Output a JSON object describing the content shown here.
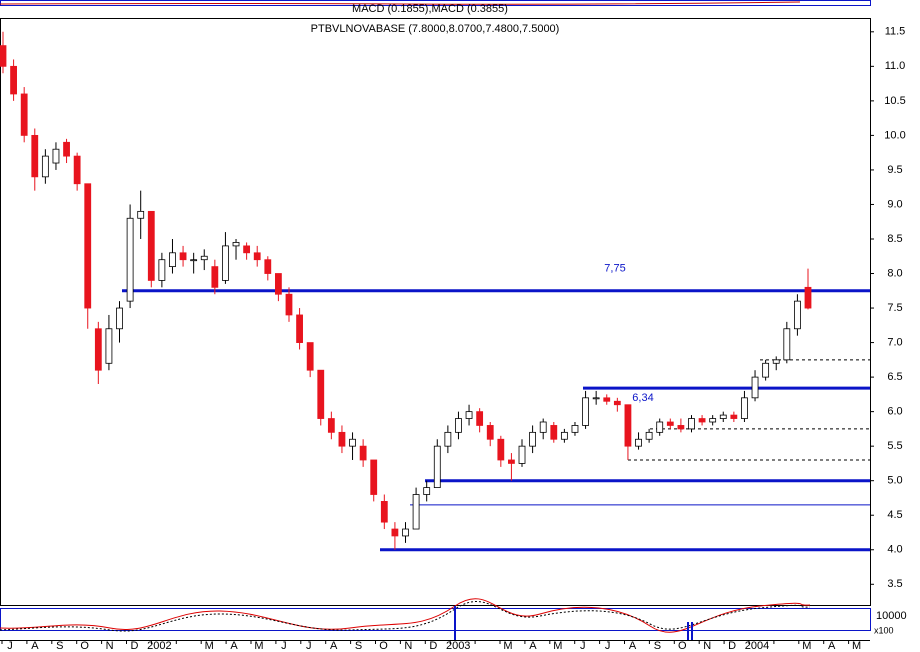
{
  "chart_data": {
    "type": "candlestick",
    "title": "PTBVLNOVABASE (7.8000,8.0700,7.4800,7.5000)",
    "indicator_title": "MACD (0.1855),MACD (0.3855)",
    "lower_label": "10000",
    "lower_unit": "x100",
    "categories": [
      "J",
      "A",
      "S",
      "O",
      "N",
      "D",
      "2002",
      null,
      "M",
      "A",
      "M",
      "J",
      "J",
      "A",
      "S",
      "O",
      "N",
      "D",
      "2003",
      null,
      "M",
      "A",
      "M",
      "J",
      "J",
      "A",
      "S",
      "O",
      "N",
      "D",
      "2004",
      null,
      "M",
      "A",
      "M"
    ],
    "ylim": [
      3.2,
      11.7
    ],
    "yticks": [
      3.5,
      {
        "value": 4,
        "label": "4.0"
      },
      4.5,
      {
        "value": 5,
        "label": "5.0"
      },
      5.5,
      {
        "value": 6,
        "label": "6.0"
      },
      6.5,
      {
        "value": 7,
        "label": "7.0"
      },
      7.5,
      {
        "value": 8,
        "label": "8.0"
      },
      8.5,
      {
        "value": 9,
        "label": "9.0"
      },
      9.5,
      {
        "value": 10,
        "label": "10.0"
      },
      10.5,
      {
        "value": 11,
        "label": "11.0"
      },
      11.5
    ],
    "up_color": "#ffffff",
    "down_color": "#e8141e",
    "level_color": "#0a14c8",
    "ohlc": [
      [
        11.3,
        11.5,
        10.9,
        11.0
      ],
      [
        11.0,
        11.1,
        10.5,
        10.6
      ],
      [
        10.6,
        10.7,
        9.9,
        10.0
      ],
      [
        10.0,
        10.1,
        9.2,
        9.4
      ],
      [
        9.4,
        9.8,
        9.3,
        9.7
      ],
      [
        9.6,
        9.9,
        9.5,
        9.8
      ],
      [
        9.9,
        9.95,
        9.6,
        9.7
      ],
      [
        9.7,
        9.75,
        9.2,
        9.3
      ],
      [
        9.3,
        9.3,
        7.2,
        7.5
      ],
      [
        7.2,
        7.3,
        6.4,
        6.6
      ],
      [
        6.7,
        7.4,
        6.6,
        7.2
      ],
      [
        7.2,
        7.6,
        7.0,
        7.5
      ],
      [
        7.6,
        9.0,
        7.5,
        8.8
      ],
      [
        8.8,
        9.2,
        8.5,
        8.9
      ],
      [
        8.9,
        8.9,
        7.8,
        7.9
      ],
      [
        7.9,
        8.3,
        7.8,
        8.2
      ],
      [
        8.1,
        8.5,
        8.0,
        8.3
      ],
      [
        8.3,
        8.4,
        8.1,
        8.2
      ],
      [
        8.2,
        8.3,
        8.0,
        8.2
      ],
      [
        8.2,
        8.35,
        8.05,
        8.25
      ],
      [
        8.1,
        8.2,
        7.7,
        7.8
      ],
      [
        7.9,
        8.6,
        7.85,
        8.4
      ],
      [
        8.4,
        8.5,
        8.2,
        8.45
      ],
      [
        8.4,
        8.45,
        8.2,
        8.3
      ],
      [
        8.3,
        8.4,
        8.1,
        8.2
      ],
      [
        8.2,
        8.25,
        7.9,
        8.0
      ],
      [
        8.0,
        8.0,
        7.6,
        7.7
      ],
      [
        7.7,
        7.8,
        7.3,
        7.4
      ],
      [
        7.4,
        7.5,
        6.9,
        7.0
      ],
      [
        7.0,
        7.0,
        6.5,
        6.6
      ],
      [
        6.6,
        6.6,
        5.8,
        5.9
      ],
      [
        5.9,
        6.0,
        5.6,
        5.7
      ],
      [
        5.7,
        5.8,
        5.4,
        5.5
      ],
      [
        5.5,
        5.7,
        5.3,
        5.6
      ],
      [
        5.5,
        5.6,
        5.2,
        5.3
      ],
      [
        5.3,
        5.3,
        4.7,
        4.8
      ],
      [
        4.7,
        4.8,
        4.3,
        4.4
      ],
      [
        4.3,
        4.4,
        4.0,
        4.2
      ],
      [
        4.2,
        4.4,
        4.1,
        4.3
      ],
      [
        4.3,
        4.9,
        4.3,
        4.8
      ],
      [
        4.8,
        5.0,
        4.7,
        4.9
      ],
      [
        4.9,
        5.6,
        4.9,
        5.5
      ],
      [
        5.5,
        5.8,
        5.4,
        5.7
      ],
      [
        5.7,
        6.0,
        5.6,
        5.9
      ],
      [
        5.9,
        6.1,
        5.8,
        6.0
      ],
      [
        6.0,
        6.05,
        5.7,
        5.8
      ],
      [
        5.8,
        5.85,
        5.5,
        5.6
      ],
      [
        5.6,
        5.65,
        5.2,
        5.3
      ],
      [
        5.3,
        5.4,
        5.0,
        5.25
      ],
      [
        5.25,
        5.6,
        5.2,
        5.5
      ],
      [
        5.5,
        5.8,
        5.4,
        5.7
      ],
      [
        5.7,
        5.9,
        5.6,
        5.85
      ],
      [
        5.8,
        5.85,
        5.55,
        5.6
      ],
      [
        5.6,
        5.75,
        5.55,
        5.7
      ],
      [
        5.7,
        5.85,
        5.65,
        5.8
      ],
      [
        5.8,
        6.3,
        5.75,
        6.2
      ],
      [
        6.2,
        6.3,
        6.1,
        6.2
      ],
      [
        6.2,
        6.25,
        6.1,
        6.15
      ],
      [
        6.15,
        6.2,
        6.0,
        6.1
      ],
      [
        6.1,
        6.1,
        5.3,
        5.5
      ],
      [
        5.5,
        5.7,
        5.45,
        5.6
      ],
      [
        5.6,
        5.75,
        5.55,
        5.7
      ],
      [
        5.7,
        5.9,
        5.65,
        5.85
      ],
      [
        5.85,
        5.9,
        5.75,
        5.8
      ],
      [
        5.8,
        5.9,
        5.7,
        5.75
      ],
      [
        5.75,
        5.95,
        5.7,
        5.9
      ],
      [
        5.9,
        5.95,
        5.8,
        5.85
      ],
      [
        5.85,
        5.95,
        5.8,
        5.9
      ],
      [
        5.9,
        6.0,
        5.85,
        5.95
      ],
      [
        5.95,
        6.0,
        5.85,
        5.9
      ],
      [
        5.9,
        6.3,
        5.85,
        6.2
      ],
      [
        6.2,
        6.6,
        6.15,
        6.5
      ],
      [
        6.5,
        6.75,
        6.45,
        6.7
      ],
      [
        6.7,
        6.8,
        6.6,
        6.75
      ],
      [
        6.75,
        7.3,
        6.7,
        7.2
      ],
      [
        7.2,
        7.7,
        7.1,
        7.6
      ],
      [
        7.8,
        8.07,
        7.48,
        7.5
      ]
    ],
    "levels": [
      {
        "value": 7.75,
        "label": "7,75"
      },
      {
        "value": 6.34,
        "label": "6,34"
      },
      {
        "value": 5.0
      },
      {
        "value": 4.0
      },
      {
        "value": 4.65
      },
      {
        "value": 6.75
      },
      {
        "value": 5.75
      },
      {
        "value": 5.3
      }
    ]
  }
}
